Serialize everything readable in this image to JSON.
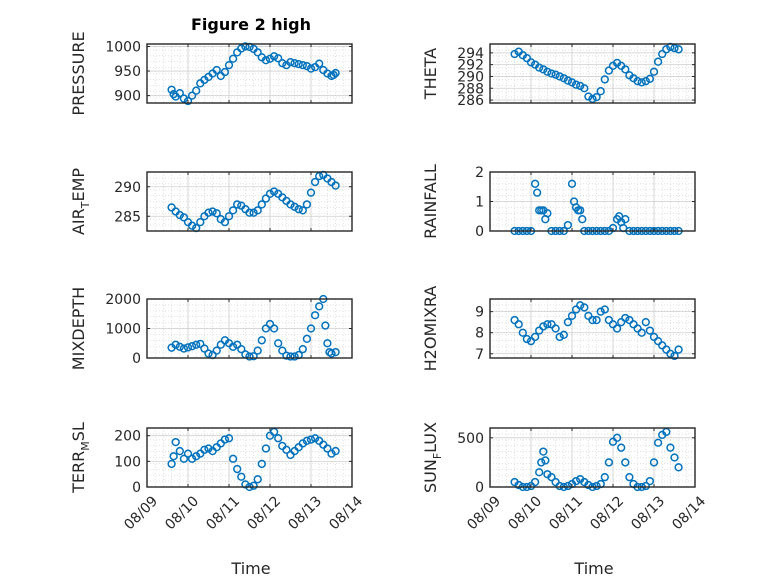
{
  "figure_title": "Figure 2 high",
  "x_axis_label": "Time",
  "x_tick_labels": [
    "08/09",
    "08/10",
    "08/11",
    "08/12",
    "08/13",
    "08/14"
  ],
  "marker_color": "#0072BD",
  "chart_data": [
    {
      "type": "scatter",
      "ylabel": "PRESSURE",
      "ylim": [
        885,
        1005
      ],
      "yticks": [
        900,
        950,
        1000
      ],
      "x": [
        9.6,
        9.65,
        9.7,
        9.8,
        9.9,
        10.0,
        10.1,
        10.2,
        10.3,
        10.4,
        10.5,
        10.6,
        10.7,
        10.8,
        10.9,
        11.0,
        11.1,
        11.2,
        11.3,
        11.4,
        11.5,
        11.6,
        11.7,
        11.8,
        11.9,
        12.0,
        12.1,
        12.2,
        12.3,
        12.4,
        12.5,
        12.6,
        12.7,
        12.8,
        12.9,
        13.0,
        13.1,
        13.2,
        13.3,
        13.4,
        13.5,
        13.55,
        13.6
      ],
      "y": [
        912,
        903,
        898,
        905,
        894,
        889,
        900,
        910,
        925,
        932,
        938,
        945,
        952,
        940,
        948,
        962,
        975,
        988,
        996,
        1000,
        999,
        995,
        988,
        978,
        972,
        975,
        980,
        976,
        966,
        962,
        968,
        966,
        964,
        962,
        960,
        955,
        958,
        965,
        952,
        945,
        940,
        942,
        946
      ]
    },
    {
      "type": "scatter",
      "ylabel": "THETA",
      "ylim": [
        285.5,
        295.5
      ],
      "yticks": [
        286,
        288,
        290,
        292,
        294
      ],
      "x": [
        9.6,
        9.7,
        9.8,
        9.9,
        10.0,
        10.1,
        10.2,
        10.3,
        10.4,
        10.5,
        10.6,
        10.7,
        10.8,
        10.9,
        11.0,
        11.1,
        11.2,
        11.3,
        11.4,
        11.5,
        11.6,
        11.7,
        11.8,
        11.9,
        12.0,
        12.1,
        12.2,
        12.3,
        12.4,
        12.5,
        12.6,
        12.7,
        12.8,
        12.9,
        13.0,
        13.1,
        13.2,
        13.3,
        13.4,
        13.5,
        13.6
      ],
      "y": [
        293.8,
        294.2,
        293.6,
        293.1,
        292.4,
        292.0,
        291.5,
        291.2,
        290.8,
        290.5,
        290.3,
        290.0,
        289.7,
        289.3,
        289.0,
        288.6,
        288.4,
        288.0,
        286.6,
        286.2,
        286.5,
        287.5,
        289.5,
        291.0,
        291.8,
        292.3,
        291.8,
        291.2,
        290.2,
        289.7,
        289.2,
        289.0,
        289.2,
        289.6,
        290.8,
        292.5,
        293.8,
        294.6,
        295.0,
        294.8,
        294.6
      ]
    },
    {
      "type": "scatter",
      "ylabel": "AIR_TEMP",
      "ylim": [
        282.5,
        292.5
      ],
      "yticks": [
        285,
        290
      ],
      "x": [
        9.6,
        9.7,
        9.8,
        9.9,
        10.0,
        10.1,
        10.2,
        10.3,
        10.4,
        10.5,
        10.6,
        10.7,
        10.8,
        10.9,
        11.0,
        11.1,
        11.2,
        11.3,
        11.4,
        11.5,
        11.6,
        11.7,
        11.8,
        11.9,
        12.0,
        12.1,
        12.2,
        12.3,
        12.4,
        12.5,
        12.6,
        12.7,
        12.8,
        12.9,
        13.0,
        13.1,
        13.2,
        13.3,
        13.4,
        13.5,
        13.6
      ],
      "y": [
        286.5,
        285.8,
        285.2,
        284.8,
        284.0,
        283.4,
        283.0,
        284.0,
        285.0,
        285.6,
        285.8,
        285.5,
        284.5,
        284.0,
        285.0,
        286.0,
        287.0,
        286.8,
        286.2,
        285.6,
        285.6,
        286.0,
        287.0,
        288.0,
        288.8,
        289.2,
        288.8,
        288.2,
        287.6,
        287.0,
        286.6,
        286.2,
        286.0,
        287.0,
        289.0,
        290.8,
        291.8,
        292.0,
        291.4,
        290.8,
        290.2
      ]
    },
    {
      "type": "scatter",
      "ylabel": "RAINFALL",
      "ylim": [
        0,
        2
      ],
      "yticks": [
        0,
        1,
        2
      ],
      "x": [
        9.6,
        9.7,
        9.8,
        9.9,
        10.0,
        10.1,
        10.15,
        10.2,
        10.25,
        10.3,
        10.35,
        10.4,
        10.5,
        10.6,
        10.7,
        10.8,
        10.9,
        11.0,
        11.05,
        11.1,
        11.15,
        11.2,
        11.25,
        11.3,
        11.4,
        11.5,
        11.6,
        11.7,
        11.8,
        11.9,
        12.0,
        12.1,
        12.15,
        12.2,
        12.25,
        12.3,
        12.4,
        12.5,
        12.6,
        12.7,
        12.8,
        12.9,
        13.0,
        13.1,
        13.2,
        13.3,
        13.4,
        13.5,
        13.6
      ],
      "y": [
        0,
        0,
        0,
        0,
        0,
        1.6,
        1.3,
        0.7,
        0.7,
        0.7,
        0.4,
        0.6,
        0,
        0,
        0,
        0,
        0.2,
        1.6,
        1.0,
        0.8,
        0.7,
        0.7,
        0.4,
        0,
        0,
        0,
        0,
        0,
        0,
        0,
        0.1,
        0.4,
        0.5,
        0.3,
        0.1,
        0.4,
        0,
        0,
        0,
        0,
        0,
        0,
        0,
        0,
        0,
        0,
        0,
        0,
        0
      ]
    },
    {
      "type": "scatter",
      "ylabel": "MIXDEPTH",
      "ylim": [
        0,
        2000
      ],
      "yticks": [
        0,
        1000,
        2000
      ],
      "x": [
        9.6,
        9.7,
        9.8,
        9.9,
        10.0,
        10.1,
        10.2,
        10.3,
        10.4,
        10.5,
        10.6,
        10.7,
        10.8,
        10.9,
        11.0,
        11.1,
        11.2,
        11.3,
        11.4,
        11.5,
        11.6,
        11.7,
        11.8,
        11.9,
        12.0,
        12.1,
        12.2,
        12.3,
        12.4,
        12.5,
        12.6,
        12.7,
        12.8,
        12.9,
        13.0,
        13.1,
        13.2,
        13.3,
        13.35,
        13.4,
        13.45,
        13.5,
        13.6
      ],
      "y": [
        350,
        450,
        380,
        320,
        360,
        400,
        450,
        480,
        320,
        150,
        100,
        250,
        450,
        600,
        500,
        380,
        450,
        300,
        120,
        50,
        60,
        250,
        600,
        1000,
        1150,
        1000,
        500,
        250,
        80,
        50,
        50,
        100,
        300,
        650,
        1000,
        1450,
        1750,
        2000,
        1100,
        500,
        200,
        150,
        200
      ]
    },
    {
      "type": "scatter",
      "ylabel": "H2OMIXRA",
      "ylim": [
        6.8,
        9.6
      ],
      "yticks": [
        7,
        8,
        9
      ],
      "x": [
        9.6,
        9.7,
        9.8,
        9.9,
        10.0,
        10.1,
        10.2,
        10.3,
        10.4,
        10.5,
        10.6,
        10.7,
        10.8,
        10.9,
        11.0,
        11.1,
        11.2,
        11.3,
        11.4,
        11.5,
        11.6,
        11.7,
        11.8,
        11.9,
        12.0,
        12.1,
        12.2,
        12.3,
        12.4,
        12.5,
        12.6,
        12.7,
        12.8,
        12.9,
        13.0,
        13.1,
        13.2,
        13.3,
        13.4,
        13.5,
        13.6
      ],
      "y": [
        8.6,
        8.4,
        8.0,
        7.7,
        7.6,
        7.8,
        8.1,
        8.3,
        8.4,
        8.4,
        8.2,
        7.8,
        7.9,
        8.5,
        8.8,
        9.1,
        9.3,
        9.2,
        8.8,
        8.6,
        8.6,
        9.0,
        9.1,
        8.6,
        8.4,
        8.2,
        8.5,
        8.7,
        8.6,
        8.4,
        8.2,
        8.0,
        8.5,
        8.1,
        7.8,
        7.6,
        7.4,
        7.2,
        7.0,
        6.9,
        7.2
      ]
    },
    {
      "type": "scatter",
      "ylabel": "TERR_MSL",
      "ylim": [
        0,
        230
      ],
      "yticks": [
        0,
        100,
        200
      ],
      "x": [
        9.6,
        9.65,
        9.7,
        9.8,
        9.9,
        10.0,
        10.1,
        10.2,
        10.3,
        10.4,
        10.5,
        10.6,
        10.7,
        10.8,
        10.9,
        11.0,
        11.1,
        11.2,
        11.3,
        11.4,
        11.5,
        11.6,
        11.7,
        11.8,
        11.9,
        12.0,
        12.1,
        12.2,
        12.3,
        12.4,
        12.5,
        12.6,
        12.7,
        12.8,
        12.9,
        13.0,
        13.1,
        13.2,
        13.3,
        13.4,
        13.5,
        13.6
      ],
      "y": [
        90,
        120,
        175,
        140,
        110,
        130,
        110,
        120,
        130,
        145,
        150,
        140,
        155,
        170,
        185,
        190,
        110,
        70,
        40,
        10,
        0,
        5,
        30,
        90,
        150,
        200,
        215,
        190,
        160,
        145,
        125,
        140,
        155,
        170,
        180,
        185,
        190,
        180,
        165,
        150,
        130,
        140
      ]
    },
    {
      "type": "scatter",
      "ylabel": "SUN_FLUX",
      "ylim": [
        0,
        600
      ],
      "yticks": [
        0,
        500
      ],
      "x": [
        9.6,
        9.7,
        9.8,
        9.9,
        10.0,
        10.1,
        10.2,
        10.25,
        10.3,
        10.35,
        10.4,
        10.5,
        10.6,
        10.7,
        10.8,
        10.9,
        11.0,
        11.1,
        11.2,
        11.3,
        11.4,
        11.5,
        11.6,
        11.7,
        11.8,
        11.9,
        12.0,
        12.1,
        12.2,
        12.3,
        12.4,
        12.5,
        12.6,
        12.7,
        12.8,
        12.9,
        13.0,
        13.1,
        13.2,
        13.3,
        13.4,
        13.5,
        13.6
      ],
      "y": [
        50,
        20,
        0,
        0,
        10,
        50,
        150,
        250,
        360,
        270,
        130,
        100,
        50,
        10,
        0,
        10,
        30,
        60,
        80,
        50,
        20,
        0,
        10,
        30,
        100,
        250,
        460,
        500,
        400,
        250,
        100,
        30,
        0,
        0,
        10,
        60,
        250,
        450,
        530,
        560,
        400,
        300,
        200
      ]
    }
  ]
}
